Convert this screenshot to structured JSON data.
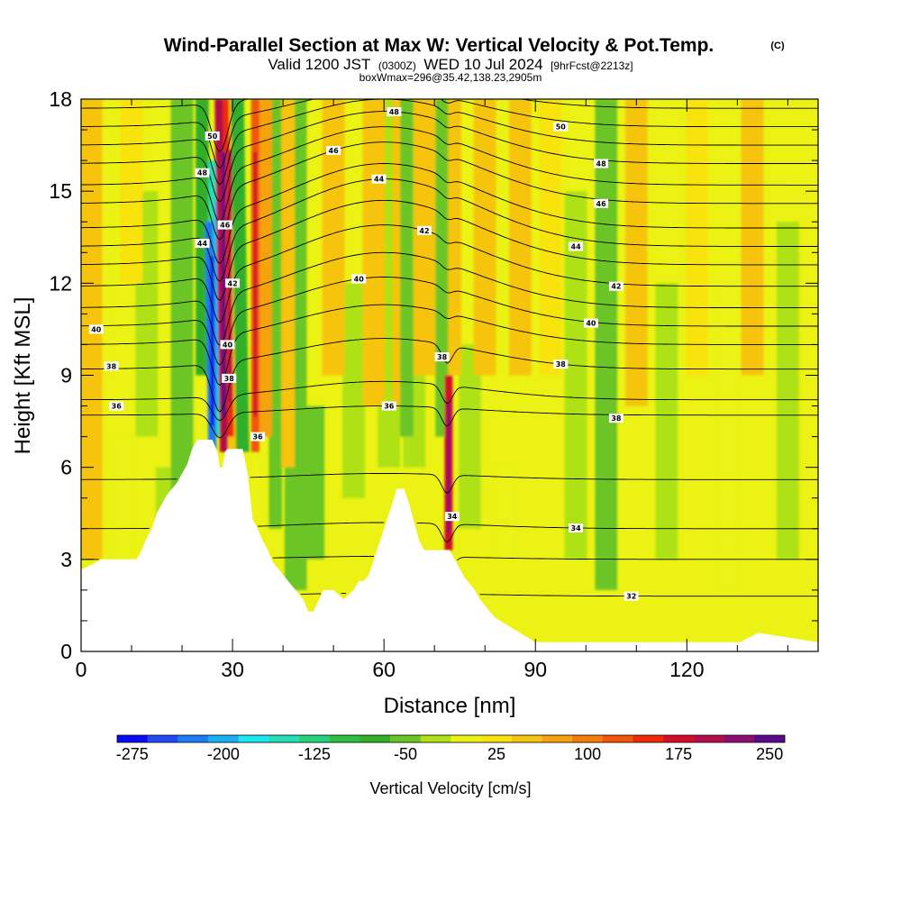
{
  "title": {
    "main": "Wind-Parallel Section at Max W: Vertical Velocity & Pot.Temp.",
    "copyright": "(C)",
    "valid_prefix": "Valid 1200 JST",
    "valid_utc": "(0300Z)",
    "valid_date": "WED 10 Jul 2024",
    "forecast": "[9hrFcst@2213z]",
    "boxwmax": "boxWmax=296@35.42,138.23,2905m"
  },
  "colors": {
    "colorbar": [
      "#0a0af5",
      "#1f4af5",
      "#1e7cf4",
      "#1ab0f4",
      "#1ce8f0",
      "#23e0b6",
      "#27d27d",
      "#2bbf43",
      "#33af2b",
      "#6cc526",
      "#aee216",
      "#ebf214",
      "#f8e311",
      "#f6c40f",
      "#f5a20d",
      "#f47d0c",
      "#f2560b",
      "#ee2a0b",
      "#d30e2a",
      "#b30e4a",
      "#8d0e70",
      "#5a0a86"
    ],
    "terrain": "#ffffff",
    "contour": "#000000"
  },
  "chart_data": {
    "type": "heatmap",
    "title": "Wind-Parallel Section at Max W: Vertical Velocity & Pot.Temp.",
    "xlabel": "Distance [nm]",
    "ylabel": "Height [Kft MSL]",
    "xlim": [
      0,
      146
    ],
    "ylim": [
      0,
      18
    ],
    "xticks": [
      0,
      30,
      60,
      90,
      120
    ],
    "yticks": [
      0,
      3,
      6,
      9,
      12,
      15,
      18
    ],
    "colorbar": {
      "label": "Vertical Velocity [cm/s]",
      "tick_labels": [
        "-275",
        "-200",
        "-125",
        "-50",
        "25",
        "100",
        "175",
        "250"
      ],
      "tick_values": [
        -275,
        -200,
        -125,
        -50,
        25,
        100,
        175,
        250
      ],
      "min": -287.5,
      "max": 262.5,
      "step": 25
    },
    "background_w": 25,
    "vertical_velocity_features": [
      {
        "x": 2,
        "w": 45,
        "zmin": 3,
        "zmax": 18
      },
      {
        "x": 4,
        "w": 0,
        "zmin": 9,
        "zmax": 17
      },
      {
        "x": 8,
        "w": 10,
        "zmin": 3,
        "zmax": 7
      },
      {
        "x": 10,
        "w": 30,
        "zmin": 12,
        "zmax": 18
      },
      {
        "x": 13,
        "w": -15,
        "zmin": 7,
        "zmax": 15
      },
      {
        "x": 17,
        "w": -25,
        "zmin": 3,
        "zmax": 6
      },
      {
        "x": 20,
        "w": -40,
        "zmin": 3,
        "zmax": 18
      },
      {
        "x": 24,
        "w": -70,
        "zmin": 9,
        "zmax": 18
      },
      {
        "x": 26,
        "w": -230,
        "zmin": 6.6,
        "zmax": 14
      },
      {
        "x": 26.8,
        "w": -160,
        "zmin": 7,
        "zmax": 16
      },
      {
        "x": 28.3,
        "w": 200,
        "zmin": 6.5,
        "zmax": 18
      },
      {
        "x": 29.5,
        "w": 160,
        "zmin": 7,
        "zmax": 18
      },
      {
        "x": 31,
        "w": 40,
        "zmin": 6.5,
        "zmax": 18
      },
      {
        "x": 32,
        "w": -80,
        "zmin": 6.5,
        "zmax": 18
      },
      {
        "x": 34.5,
        "w": 130,
        "zmin": 6.5,
        "zmax": 18
      },
      {
        "x": 36.5,
        "w": 85,
        "zmin": 7,
        "zmax": 18
      },
      {
        "x": 38.5,
        "w": -60,
        "zmin": 4,
        "zmax": 18
      },
      {
        "x": 41,
        "w": 60,
        "zmin": 6,
        "zmax": 18
      },
      {
        "x": 42.5,
        "w": -40,
        "zmin": 2,
        "zmax": 18
      },
      {
        "x": 46,
        "w": -50,
        "zmin": 3,
        "zmax": 8
      },
      {
        "x": 50,
        "w": 45,
        "zmin": 9,
        "zmax": 18
      },
      {
        "x": 54,
        "w": -20,
        "zmin": 5,
        "zmax": 12
      },
      {
        "x": 58,
        "w": 40,
        "zmin": 8,
        "zmax": 18
      },
      {
        "x": 61,
        "w": -30,
        "zmin": 6,
        "zmax": 18
      },
      {
        "x": 63,
        "w": 60,
        "zmin": 8,
        "zmax": 18
      },
      {
        "x": 64.5,
        "w": -60,
        "zmin": 7,
        "zmax": 18
      },
      {
        "x": 66,
        "w": -35,
        "zmin": 6,
        "zmax": 12
      },
      {
        "x": 68,
        "w": 45,
        "zmin": 9,
        "zmax": 18
      },
      {
        "x": 71.5,
        "w": -55,
        "zmin": 7,
        "zmax": 18
      },
      {
        "x": 72.8,
        "w": 170,
        "zmin": 3.3,
        "zmax": 9
      },
      {
        "x": 74,
        "w": 60,
        "zmin": 9,
        "zmax": 18
      },
      {
        "x": 77,
        "w": -35,
        "zmin": 4,
        "zmax": 10
      },
      {
        "x": 80,
        "w": 45,
        "zmin": 9,
        "zmax": 18
      },
      {
        "x": 84,
        "w": 0,
        "zmin": 3,
        "zmax": 6
      },
      {
        "x": 87,
        "w": 40,
        "zmin": 9,
        "zmax": 18
      },
      {
        "x": 93,
        "w": 35,
        "zmin": 9,
        "zmax": 18
      },
      {
        "x": 98,
        "w": -20,
        "zmin": 3,
        "zmax": 15
      },
      {
        "x": 104,
        "w": -50,
        "zmin": 2,
        "zmax": 18
      },
      {
        "x": 110,
        "w": 40,
        "zmin": 8,
        "zmax": 18
      },
      {
        "x": 116,
        "w": -20,
        "zmin": 3,
        "zmax": 12
      },
      {
        "x": 122,
        "w": 35,
        "zmin": 9,
        "zmax": 18
      },
      {
        "x": 128,
        "w": -10,
        "zmin": 2,
        "zmax": 12
      },
      {
        "x": 133,
        "w": 45,
        "zmin": 9,
        "zmax": 18
      },
      {
        "x": 140,
        "w": -15,
        "zmin": 3,
        "zmax": 14
      }
    ],
    "terrain": {
      "x": [
        0,
        0.5,
        3,
        4,
        11,
        12,
        13,
        14,
        15,
        16,
        17,
        18,
        19,
        20,
        21,
        22,
        23,
        24,
        25,
        26,
        27,
        27.5,
        28,
        28.5,
        29,
        31,
        32,
        33,
        34,
        35,
        36,
        37,
        38,
        39,
        40,
        41,
        42,
        43,
        44,
        45,
        46,
        48,
        50,
        52,
        54,
        55,
        56,
        57,
        58,
        59,
        60,
        61,
        62,
        62.5,
        64,
        65,
        66,
        67,
        68,
        69,
        70,
        71,
        72,
        73,
        74,
        75,
        76,
        77,
        78,
        79,
        80,
        81,
        82,
        83,
        84,
        85,
        86,
        87,
        88,
        89,
        90,
        91,
        92,
        93,
        94,
        130,
        130.5,
        134,
        134.5,
        146
      ],
      "y": [
        2.7,
        2.7,
        2.9,
        3.0,
        3.0,
        3.3,
        3.7,
        4.0,
        4.5,
        4.8,
        5.1,
        5.3,
        5.5,
        5.8,
        6.1,
        6.6,
        6.9,
        6.9,
        6.9,
        6.9,
        6.5,
        6.0,
        6.0,
        6.5,
        6.6,
        6.6,
        6.6,
        5.8,
        4.3,
        4.0,
        3.6,
        3.3,
        2.9,
        2.7,
        2.5,
        2.3,
        2.1,
        1.9,
        1.7,
        1.3,
        1.3,
        2.0,
        2.0,
        1.7,
        2.0,
        2.3,
        2.3,
        2.5,
        3.0,
        3.5,
        4.0,
        4.5,
        5.0,
        5.3,
        5.3,
        4.8,
        4.2,
        3.6,
        3.3,
        3.3,
        3.3,
        3.3,
        3.3,
        3.3,
        3.0,
        2.7,
        2.4,
        2.2,
        2.0,
        1.7,
        1.5,
        1.3,
        1.1,
        1.0,
        0.9,
        0.8,
        0.7,
        0.6,
        0.5,
        0.4,
        0.3,
        0.3,
        0.3,
        0.3,
        0.3,
        0.3,
        0.3,
        0.6,
        0.6,
        0.3,
        0.3
      ]
    },
    "potential_temperature_contours": {
      "units_hint": "level labels as printed",
      "levels": [
        {
          "value": 32,
          "label": "32",
          "base": 1.8,
          "lx": 109,
          "peak": 0.1
        },
        {
          "value": 33,
          "label": "",
          "base": 3.0,
          "lx": 109,
          "peak": 0.1
        },
        {
          "value": 34,
          "label": "34",
          "base": 4.0,
          "lx": 98,
          "peak": 0.2
        },
        {
          "value": 35,
          "label": "",
          "base": 5.6,
          "lx": 98,
          "peak": 0.2
        },
        {
          "value": 36,
          "label": "36",
          "base": 7.7,
          "lx": 61,
          "peak": 0.3
        },
        {
          "value": 37,
          "label": "",
          "base": 8.2,
          "lx": 61,
          "peak": 0.6
        },
        {
          "value": 38,
          "label": "38",
          "base": 9.2,
          "lx": 95,
          "peak": 1.0
        },
        {
          "value": 39,
          "label": "",
          "base": 10.0,
          "lx": 95,
          "peak": 1.3
        },
        {
          "value": 40,
          "label": "40",
          "base": 10.6,
          "lx": 55,
          "peak": 1.6
        },
        {
          "value": 41,
          "label": "",
          "base": 11.2,
          "lx": 55,
          "peak": 1.8
        },
        {
          "value": 42,
          "label": "42",
          "base": 11.9,
          "lx": 68,
          "peak": 2.0
        },
        {
          "value": 43,
          "label": "",
          "base": 12.6,
          "lx": 68,
          "peak": 2.1
        },
        {
          "value": 44,
          "label": "44",
          "base": 13.2,
          "lx": 59,
          "peak": 2.2
        },
        {
          "value": 45,
          "label": "",
          "base": 13.8,
          "lx": 59,
          "peak": 2.1
        },
        {
          "value": 46,
          "label": "46",
          "base": 14.6,
          "lx": 50,
          "peak": 2.0
        },
        {
          "value": 47,
          "label": "",
          "base": 15.2,
          "lx": 50,
          "peak": 1.9
        },
        {
          "value": 48,
          "label": "48",
          "base": 15.9,
          "lx": 62,
          "peak": 1.7
        },
        {
          "value": 49,
          "label": "",
          "base": 16.5,
          "lx": 62,
          "peak": 1.5
        },
        {
          "value": 50,
          "label": "50",
          "base": 17.1,
          "lx": 61,
          "peak": 1.2
        },
        {
          "value": 51,
          "label": "",
          "base": 17.7,
          "lx": 61,
          "peak": 0.9
        }
      ],
      "extra_labels": [
        {
          "label": "40",
          "x": 3,
          "y": 10.5
        },
        {
          "label": "38",
          "x": 6,
          "y": 9.3
        },
        {
          "label": "36",
          "x": 7,
          "y": 8.0
        },
        {
          "label": "50",
          "x": 26,
          "y": 16.8
        },
        {
          "label": "48",
          "x": 24,
          "y": 15.6
        },
        {
          "label": "46",
          "x": 28.5,
          "y": 13.9
        },
        {
          "label": "44",
          "x": 24,
          "y": 13.3
        },
        {
          "label": "42",
          "x": 30,
          "y": 12.0
        },
        {
          "label": "40",
          "x": 29,
          "y": 10.0
        },
        {
          "label": "38",
          "x": 29.3,
          "y": 8.9
        },
        {
          "label": "36",
          "x": 35,
          "y": 7.0
        },
        {
          "label": "50",
          "x": 95,
          "y": 17.1
        },
        {
          "label": "48",
          "x": 103,
          "y": 15.9
        },
        {
          "label": "46",
          "x": 103,
          "y": 14.6
        },
        {
          "label": "44",
          "x": 98,
          "y": 13.2
        },
        {
          "label": "42",
          "x": 106,
          "y": 11.9
        },
        {
          "label": "40",
          "x": 101,
          "y": 10.7
        },
        {
          "label": "38",
          "x": 106,
          "y": 7.6
        },
        {
          "label": "34",
          "x": 73.5,
          "y": 4.4
        },
        {
          "label": "38",
          "x": 71.5,
          "y": 9.6
        }
      ]
    }
  }
}
